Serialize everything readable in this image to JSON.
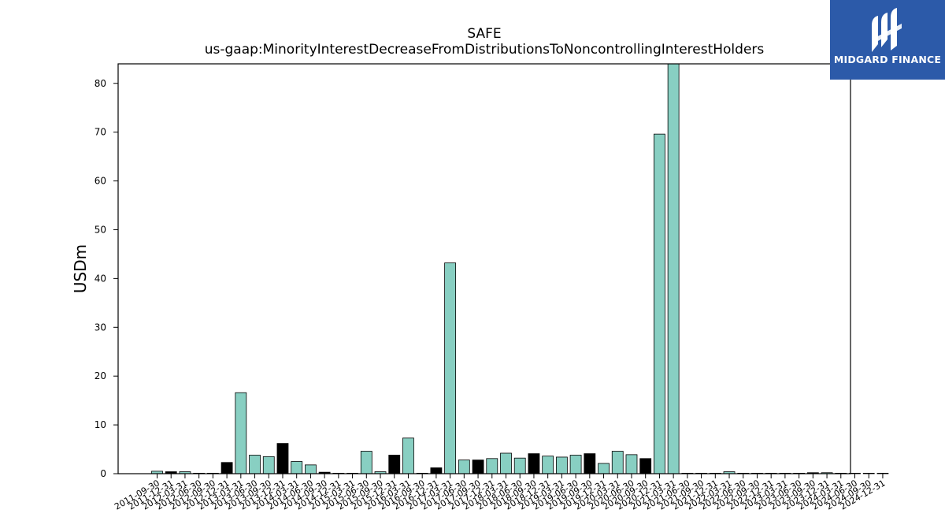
{
  "brand": {
    "name": "MIDGARD FINANCE",
    "bg_color": "#2c5aa9"
  },
  "chart_data": {
    "type": "bar",
    "title": "SAFE",
    "subtitle": "us-gaap:MinorityInterestDecreaseFromDistributionsToNoncontrollingInterestHolders",
    "xlabel": "",
    "ylabel": "USDm",
    "ylim": [
      0,
      84
    ],
    "yticks": [
      0,
      10,
      20,
      30,
      40,
      50,
      60,
      70,
      80
    ],
    "grid": false,
    "colors": {
      "teal": "#88cfc2",
      "black": "#000000"
    },
    "categories": [
      "2011-09-30",
      "2011-12-31",
      "2012-03-31",
      "2012-06-30",
      "2012-09-30",
      "2012-12-31",
      "2013-03-31",
      "2013-06-30",
      "2013-09-30",
      "2013-12-31",
      "2014-03-31",
      "2014-06-30",
      "2014-09-30",
      "2014-12-31",
      "2015-03-31",
      "2015-06-30",
      "2015-09-30",
      "2015-12-31",
      "2016-03-31",
      "2016-09-30",
      "2016-12-31",
      "2017-03-31",
      "2017-06-30",
      "2017-09-30",
      "2017-12-31",
      "2018-03-31",
      "2018-06-30",
      "2018-09-30",
      "2018-12-31",
      "2019-03-31",
      "2019-06-30",
      "2019-09-30",
      "2019-12-31",
      "2020-03-31",
      "2020-06-30",
      "2020-09-30",
      "2020-12-31",
      "2021-03-31",
      "2021-06-30",
      "2021-09-30",
      "2021-12-31",
      "2022-03-31",
      "2022-06-30",
      "2022-09-30",
      "2022-12-31",
      "2023-03-31",
      "2023-06-30",
      "2023-09-30",
      "2023-12-31",
      "2024-03-31",
      "2024-06-30",
      "2024-09-30",
      "2024-12-31"
    ],
    "values": [
      0.5,
      0.4,
      0.4,
      0.1,
      0.1,
      2.3,
      16.6,
      3.8,
      3.5,
      6.2,
      2.5,
      1.8,
      0.3,
      0.1,
      0.1,
      4.6,
      0.4,
      3.8,
      7.3,
      0.1,
      1.2,
      43.2,
      2.8,
      2.8,
      3.1,
      4.2,
      3.2,
      4.1,
      3.6,
      3.4,
      3.8,
      4.1,
      2.1,
      4.6,
      3.9,
      3.1,
      69.6,
      84.0,
      0.1,
      0.1,
      0.1,
      0.4,
      0.1,
      0.1,
      0.1,
      0.1,
      0.1,
      0.2,
      0.2,
      0.1,
      0.1,
      0.1,
      0.1
    ],
    "bar_colors": [
      "teal",
      "black",
      "teal",
      "teal",
      "teal",
      "black",
      "teal",
      "teal",
      "teal",
      "black",
      "teal",
      "teal",
      "black",
      "teal",
      "teal",
      "teal",
      "teal",
      "black",
      "teal",
      "teal",
      "black",
      "teal",
      "teal",
      "black",
      "teal",
      "teal",
      "teal",
      "black",
      "teal",
      "teal",
      "teal",
      "black",
      "teal",
      "teal",
      "teal",
      "black",
      "teal",
      "teal",
      "teal",
      "teal",
      "teal",
      "teal",
      "teal",
      "teal",
      "teal",
      "teal",
      "teal",
      "black",
      "teal",
      "teal",
      "teal",
      "teal",
      "teal"
    ]
  }
}
